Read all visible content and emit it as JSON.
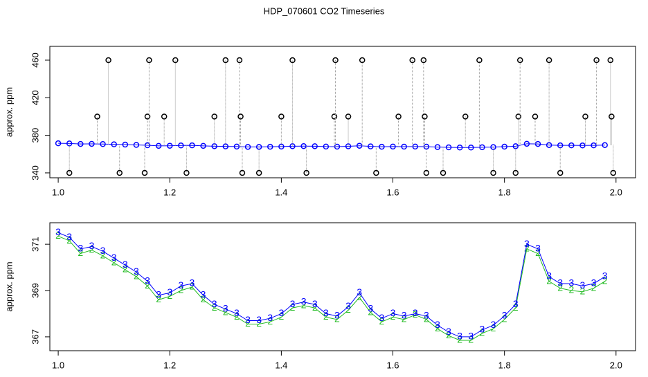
{
  "chart_data": [
    {
      "type": "scatter",
      "title": "HDP_070601  CO2 Timeseries",
      "y_label": "approx. ppm",
      "xlim": [
        0.985,
        2.035
      ],
      "ylim": [
        334.8,
        474.7
      ],
      "xticks": [
        {
          "value": 1,
          "label": "1.0"
        },
        1.2,
        1.4,
        1.6,
        1.8,
        {
          "value": 2,
          "label": "2.0"
        }
      ],
      "yticks": [
        340,
        380,
        420,
        460
      ],
      "series": [
        {
          "color": "#0000ff",
          "line": true,
          "x": [
            1.0,
            1.02,
            1.04,
            1.06,
            1.08,
            1.1,
            1.12,
            1.14,
            1.16,
            1.18,
            1.2,
            1.22,
            1.24,
            1.26,
            1.28,
            1.3,
            1.32,
            1.34,
            1.36,
            1.38,
            1.4,
            1.42,
            1.44,
            1.46,
            1.48,
            1.5,
            1.52,
            1.54,
            1.56,
            1.58,
            1.6,
            1.62,
            1.64,
            1.66,
            1.68,
            1.7,
            1.72,
            1.74,
            1.76,
            1.78,
            1.8,
            1.82,
            1.84,
            1.86,
            1.88,
            1.9,
            1.92,
            1.94,
            1.96,
            1.98
          ],
          "values": [
            371.5,
            371.3,
            370.8,
            370.9,
            370.7,
            370.4,
            370.1,
            369.8,
            369.4,
            368.8,
            368.9,
            369.2,
            369.3,
            368.8,
            368.4,
            368.2,
            368.0,
            367.7,
            367.7,
            367.8,
            368.0,
            368.4,
            368.5,
            368.4,
            368.0,
            367.9,
            368.3,
            368.9,
            368.2,
            367.8,
            368.0,
            367.9,
            368.0,
            367.9,
            367.5,
            367.2,
            367.0,
            367.0,
            367.3,
            367.5,
            367.9,
            368.4,
            371.0,
            370.8,
            369.6,
            369.3,
            369.3,
            369.2,
            369.3,
            369.6
          ]
        },
        {
          "color": "#000000",
          "stems": true,
          "x": [
            1.02,
            1.07,
            1.09,
            1.11,
            1.155,
            1.16,
            1.163,
            1.19,
            1.21,
            1.23,
            1.28,
            1.3,
            1.325,
            1.327,
            1.33,
            1.36,
            1.4,
            1.42,
            1.445,
            1.495,
            1.497,
            1.52,
            1.545,
            1.57,
            1.61,
            1.635,
            1.655,
            1.657,
            1.66,
            1.69,
            1.73,
            1.755,
            1.78,
            1.82,
            1.825,
            1.828,
            1.855,
            1.88,
            1.9,
            1.945,
            1.965,
            1.99,
            1.992,
            1.995
          ],
          "values": [
            340,
            400,
            460,
            340,
            340,
            400,
            460,
            400,
            460,
            340,
            400,
            460,
            460,
            400,
            340,
            340,
            400,
            460,
            340,
            400,
            460,
            400,
            460,
            340,
            400,
            460,
            460,
            400,
            340,
            340,
            400,
            460,
            340,
            340,
            400,
            460,
            400,
            460,
            340,
            400,
            460,
            460,
            400,
            340
          ]
        }
      ]
    },
    {
      "type": "scatter",
      "y_label": "approx. ppm",
      "xlim": [
        0.985,
        2.035
      ],
      "ylim": [
        366.4,
        371.93
      ],
      "xticks": [
        {
          "value": 1,
          "label": "1.0"
        },
        1.2,
        1.4,
        1.6,
        1.8,
        {
          "value": 2,
          "label": "2.0"
        }
      ],
      "yticks": [
        367,
        369,
        371
      ],
      "series": [
        {
          "color": "#22bb22",
          "marker": "2",
          "line": true,
          "x": [
            1.0,
            1.02,
            1.04,
            1.06,
            1.08,
            1.1,
            1.12,
            1.14,
            1.16,
            1.18,
            1.2,
            1.22,
            1.24,
            1.26,
            1.28,
            1.3,
            1.32,
            1.34,
            1.36,
            1.38,
            1.4,
            1.42,
            1.44,
            1.46,
            1.48,
            1.5,
            1.52,
            1.54,
            1.56,
            1.58,
            1.6,
            1.62,
            1.64,
            1.66,
            1.68,
            1.7,
            1.72,
            1.74,
            1.76,
            1.78,
            1.8,
            1.82,
            1.84,
            1.86,
            1.88,
            1.9,
            1.92,
            1.94,
            1.96,
            1.98
          ],
          "values": [
            371.35,
            371.15,
            370.6,
            370.75,
            370.5,
            370.2,
            369.9,
            369.6,
            369.2,
            368.6,
            368.75,
            369.0,
            369.15,
            368.6,
            368.25,
            368.05,
            367.85,
            367.55,
            367.55,
            367.65,
            367.85,
            368.25,
            368.35,
            368.25,
            367.85,
            367.75,
            368.15,
            368.7,
            368.05,
            367.65,
            367.85,
            367.75,
            367.95,
            367.75,
            367.35,
            367.05,
            366.85,
            366.85,
            367.15,
            367.35,
            367.75,
            368.25,
            370.8,
            370.6,
            369.4,
            369.1,
            369.0,
            368.95,
            369.1,
            369.4
          ]
        },
        {
          "color": "#0000ff",
          "marker": "3",
          "line": true,
          "x": [
            1.0,
            1.02,
            1.04,
            1.06,
            1.08,
            1.1,
            1.12,
            1.14,
            1.16,
            1.18,
            1.2,
            1.22,
            1.24,
            1.26,
            1.28,
            1.3,
            1.32,
            1.34,
            1.36,
            1.38,
            1.4,
            1.42,
            1.44,
            1.46,
            1.48,
            1.5,
            1.52,
            1.54,
            1.56,
            1.58,
            1.6,
            1.62,
            1.64,
            1.66,
            1.68,
            1.7,
            1.72,
            1.74,
            1.76,
            1.78,
            1.8,
            1.82,
            1.84,
            1.86,
            1.88,
            1.9,
            1.92,
            1.94,
            1.96,
            1.98
          ],
          "values": [
            371.5,
            371.3,
            370.8,
            370.9,
            370.7,
            370.4,
            370.1,
            369.8,
            369.4,
            368.8,
            368.9,
            369.2,
            369.3,
            368.8,
            368.4,
            368.2,
            368.0,
            367.7,
            367.7,
            367.8,
            368.0,
            368.4,
            368.5,
            368.4,
            368.0,
            367.9,
            368.3,
            368.9,
            368.2,
            367.8,
            368.0,
            367.9,
            368.0,
            367.9,
            367.5,
            367.2,
            367.0,
            367.0,
            367.3,
            367.5,
            367.9,
            368.4,
            371.0,
            370.8,
            369.6,
            369.3,
            369.3,
            369.2,
            369.3,
            369.6
          ]
        }
      ]
    }
  ]
}
